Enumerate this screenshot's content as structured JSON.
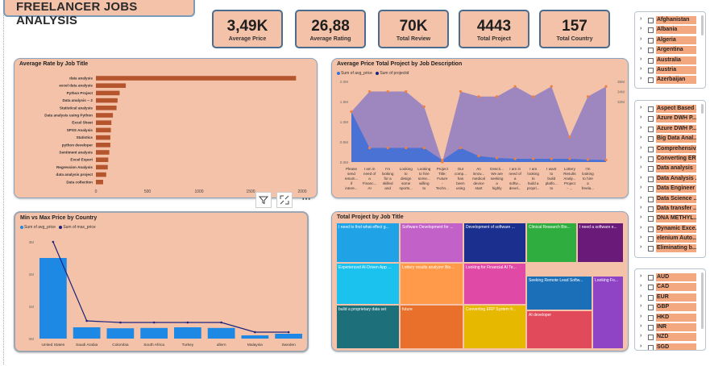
{
  "title": "FREELANCER JOBS ANALYSIS",
  "kpis": [
    {
      "value": "3,49K",
      "label": "Average Price"
    },
    {
      "value": "26,88",
      "label": "Average Rating"
    },
    {
      "value": "70K",
      "label": "Total Review"
    },
    {
      "value": "4443",
      "label": "Total Project"
    },
    {
      "value": "157",
      "label": "Total Country"
    }
  ],
  "toolbar": {
    "filter_icon": "filter-icon",
    "focus_icon": "focus-mode-icon",
    "more_icon": "more-options-icon"
  },
  "slicer_country": {
    "items": [
      "Afghanistan",
      "Albania",
      "Algeria",
      "Argentina",
      "Australia",
      "Austria",
      "Azerbaijan"
    ]
  },
  "slicer_job": {
    "items": [
      "Aspect Based ...",
      "Azure DWH P...",
      "Azure DWH P...",
      "Big Data Anal...",
      "Comprehensiv...",
      "Converting ER...",
      "Data analysis",
      "Data Analysis ...",
      "Data Engineer",
      "Data Science ...",
      "Data transfer ...",
      "DNA METHYL...",
      "Dynamic Exce...",
      "elenium Auto...",
      "Eliminating b..."
    ]
  },
  "slicer_currency": {
    "items": [
      "AUD",
      "CAD",
      "EUR",
      "GBP",
      "HKD",
      "INR",
      "NZD",
      "SGD"
    ]
  },
  "chart_data": [
    {
      "type": "bar",
      "title": "Average Rate by Job Title",
      "orientation": "horizontal",
      "categories": [
        "data analysis",
        "excel data analysis",
        "Python Project",
        "Data analysis -- 2",
        "Statistical analysis",
        "Data analysis using Python",
        "Excel Sheet",
        "SPSS Analysis",
        "Statistics",
        "python developer",
        "Sentiment analysis",
        "Excel Expert",
        "Regression Analysis",
        "data analysis project",
        "Data collection"
      ],
      "values": [
        1940,
        290,
        230,
        210,
        200,
        165,
        150,
        145,
        140,
        140,
        130,
        120,
        115,
        100,
        70
      ],
      "xticks": [
        "0",
        "500",
        "1000",
        "1500",
        "2000"
      ],
      "xlim": [
        0,
        2000
      ],
      "color": "#b5552d"
    },
    {
      "type": "area",
      "title": "Average Price Total Project by Job Description",
      "series": [
        {
          "name": "Sum of avg_price",
          "values": [
            1.25,
            0.35,
            0.35,
            0.35,
            0.35,
            0.05,
            0.35,
            0.15,
            0.1,
            0.08,
            0.08,
            0.08,
            0.08,
            0.06,
            0.05
          ],
          "color": "#3b6fd8",
          "axis": "left"
        },
        {
          "name": "Sum of projectid",
          "values": [
            30,
            34,
            34,
            34,
            31,
            20,
            34,
            33,
            33,
            35,
            33,
            35,
            25,
            33,
            35
          ],
          "color": "#8e7cc3",
          "axis": "right"
        }
      ],
      "categories": [
        "Please send resum... if intere...",
        "I am in need of a Financ... AI Tea...",
        "I'm looking for a skilled and e...",
        "Looking to design some sports...",
        "Looking to hire some... willing to lea...",
        "Project Title: Future - Techn... - Artif...",
        "Our comp... has been using ...",
        "An innov... medical device start ...",
        "Descri... We are seeking a highly skille...",
        "I am in need of a softw... devel...",
        "I am looking to build a propri...",
        "I want to build platfo... to analy...",
        "Lottery Results Analy... Project - ...",
        "I'm looking to hire a freela...",
        ""
      ],
      "yticks_left": [
        "0.0M",
        "0.5M",
        "1.0M",
        "1.5M",
        "2.0M"
      ],
      "yticks_right": [
        "32M",
        "34M",
        "36M"
      ],
      "legend_position": "top-left"
    },
    {
      "type": "bar",
      "title": "Min vs Max Price by Country",
      "categories": [
        "United States",
        "Saudi Arabia",
        "Colombia",
        "South Africa",
        "Turkey",
        "ullern",
        "Malaysia",
        "Sweden"
      ],
      "series": [
        {
          "name": "Sum of avg_price",
          "values": [
            2.5,
            0.35,
            0.32,
            0.33,
            0.35,
            0.33,
            0.1,
            0.15
          ],
          "color": "#1e88e5",
          "kind": "bar"
        },
        {
          "name": "Sum of max_price",
          "values": [
            3.0,
            0.55,
            0.5,
            0.5,
            0.5,
            0.5,
            0.2,
            0.2
          ],
          "color": "#1a237e",
          "kind": "line"
        }
      ],
      "yticks": [
        "0M",
        "1M",
        "2M",
        "3M"
      ],
      "ylim": [
        0,
        3.3
      ],
      "legend_position": "top-left"
    },
    {
      "type": "treemap",
      "title": "Total Project by Job Title",
      "cells": [
        {
          "label": "I need to find what effect g...",
          "color": "#1fa3e6"
        },
        {
          "label": "Software Development for ...",
          "color": "#c262c8"
        },
        {
          "label": "Development of software ...",
          "color": "#1b2f8e"
        },
        {
          "label": "Clinical Research Bio...",
          "color": "#2fae3f"
        },
        {
          "label": "I need a software e...",
          "color": "#6a1b7a"
        },
        {
          "label": "Experienced AI-Driven App ...",
          "color": "#1cc2ee"
        },
        {
          "label": "Lottery results analyzer Bio...",
          "color": "#ff9a4a"
        },
        {
          "label": "Looking for Financial AI Te...",
          "color": "#e04aa6"
        },
        {
          "label": "Seeking Remote Lead Softw...",
          "color": "#1a6fb8"
        },
        {
          "label": "Looking Fo...",
          "color": "#8e44c5"
        },
        {
          "label": "build a proprietary data set",
          "color": "#1d6f7a"
        },
        {
          "label": "future",
          "color": "#e8702a"
        },
        {
          "label": "Converting ERP System fr...",
          "color": "#e6b800"
        },
        {
          "label": "AI developer",
          "color": "#e04a5a"
        }
      ]
    }
  ]
}
